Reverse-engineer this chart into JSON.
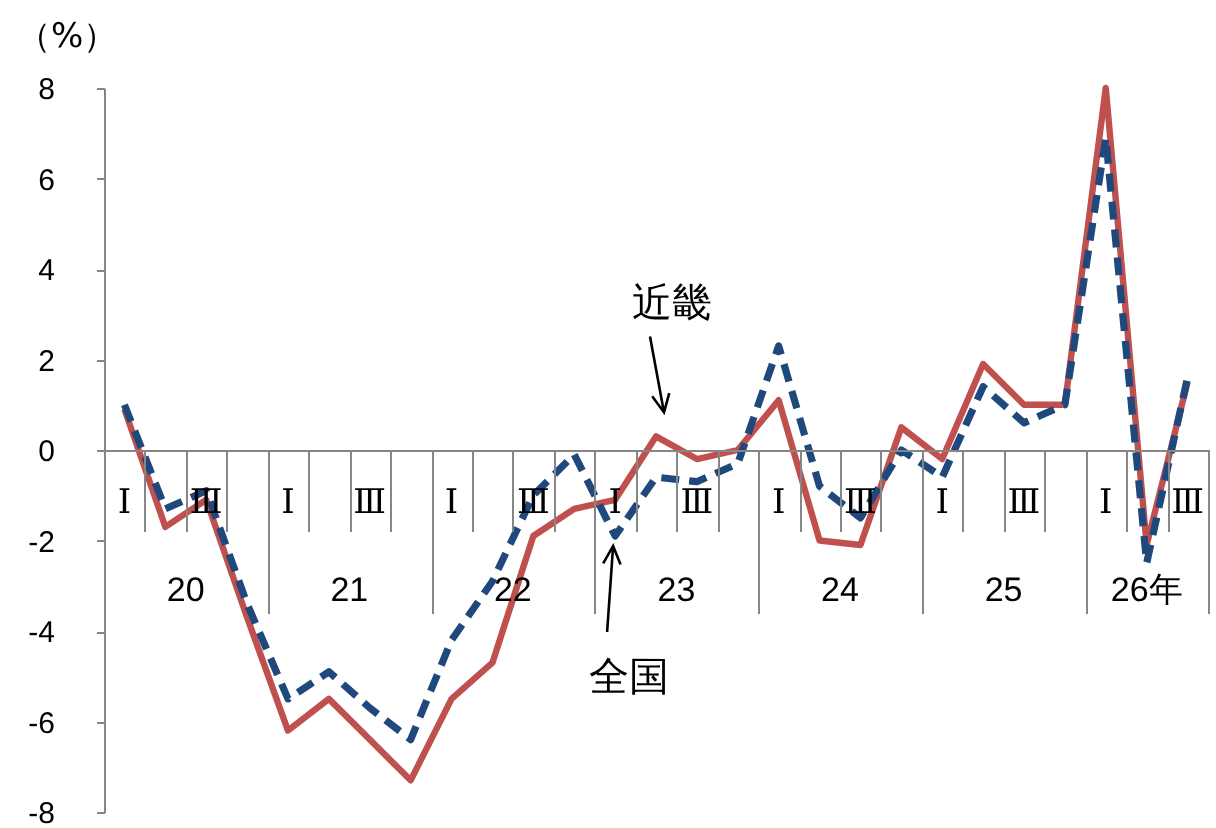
{
  "chart_data": {
    "type": "line",
    "ylabel": "（%）",
    "categories": [
      "Ⅰ",
      null,
      "Ⅲ",
      null,
      "Ⅰ",
      null,
      "Ⅲ",
      null,
      "Ⅰ",
      null,
      "Ⅲ",
      null,
      "Ⅰ",
      null,
      "Ⅲ",
      null,
      "Ⅰ",
      null,
      "Ⅲ",
      null,
      "Ⅰ",
      null,
      "Ⅲ",
      null,
      "Ⅰ",
      null,
      "Ⅲ"
    ],
    "series": [
      {
        "color": "#c0504d",
        "line_style": "solid",
        "values": [
          0.9,
          -1.7,
          -1.1,
          -3.7,
          -6.2,
          -5.5,
          -6.4,
          -7.3,
          -5.5,
          -4.7,
          -1.9,
          -1.3,
          -1.1,
          0.3,
          -0.2,
          0.0,
          1.1,
          -2.0,
          -2.1,
          0.5,
          -0.2,
          1.9,
          1.0,
          1.0,
          8.0,
          -2.1,
          1.5
        ]
      },
      {
        "color": "#1f497d",
        "line_style": "dashed",
        "values": [
          1.0,
          -1.3,
          -0.9,
          -3.4,
          -5.5,
          -4.9,
          -5.7,
          -6.4,
          -4.2,
          -2.9,
          -1.0,
          -0.1,
          -1.9,
          -0.6,
          -0.7,
          -0.3,
          2.3,
          -0.8,
          -1.5,
          0.0,
          -0.6,
          1.4,
          0.6,
          1.0,
          6.9,
          -2.5,
          1.6
        ]
      }
    ],
    "ylim": [
      -8,
      8
    ],
    "yticks": [
      -8,
      -6,
      -4,
      -2,
      0,
      2,
      4,
      6,
      8
    ],
    "annotations": [
      {
        "text": "近畿",
        "y": 0.3
      },
      {
        "text": "全国",
        "y": -1.9
      },
      "20",
      "21",
      "22",
      "23",
      "24",
      "25",
      "26年"
    ]
  }
}
